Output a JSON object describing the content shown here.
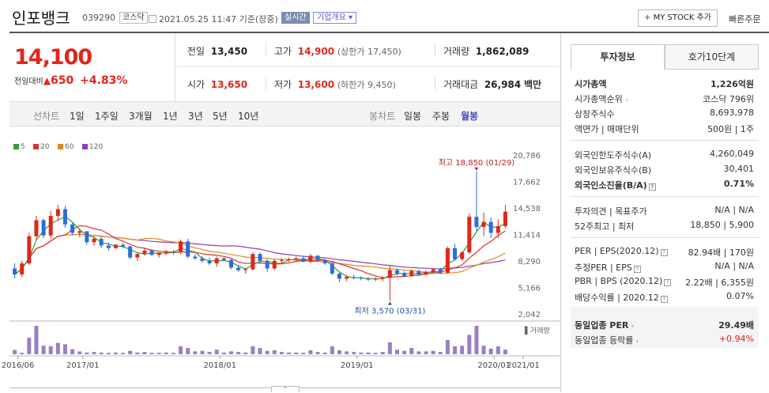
{
  "header": {
    "name": "인포뱅크",
    "code": "039290",
    "market": "코스닥",
    "date": "2021.05.25 11:47 기준(장중)",
    "live": "실시간",
    "company_info": "기업개요 ▾",
    "my_stock": "MY STOCK 추가",
    "my_stock_plus": "+",
    "quick_order": "빠른주문"
  },
  "price": {
    "current": "14,100",
    "change_label": "전일대비",
    "change_arrow": "▲",
    "change": "650",
    "change_pct": "+4.83%"
  },
  "quote": {
    "prev_label": "전일",
    "prev": "13,450",
    "high_label": "고가",
    "high": "14,900",
    "upper_limit": "(상한가 17,450)",
    "volume_label": "거래량",
    "volume": "1,862,089",
    "open_label": "시가",
    "open": "13,650",
    "low_label": "저가",
    "low": "13,600",
    "lower_limit": "(하한가 9,450)",
    "amount_label": "거래대금",
    "amount": "26,984",
    "amount_unit": "백만"
  },
  "period_bar": {
    "line_chart": "선차트",
    "line_periods": [
      "1일",
      "1주일",
      "3개월",
      "1년",
      "3년",
      "5년",
      "10년"
    ],
    "candle_chart": "봉차트",
    "candle_periods": [
      "일봉",
      "주봉",
      "월봉"
    ],
    "selected_candle": "월봉"
  },
  "legend": [
    {
      "label": "5",
      "color": "#3a9a3a"
    },
    {
      "label": "20",
      "color": "#e03030"
    },
    {
      "label": "60",
      "color": "#e08a20"
    },
    {
      "label": "120",
      "color": "#9040b0"
    }
  ],
  "chart_data": {
    "type": "candlestick",
    "interval": "monthly",
    "y_ticks": [
      "20,786",
      "17,662",
      "14,538",
      "11,414",
      "8,290",
      "5,166",
      "2,042"
    ],
    "x_ticks": [
      "2016/06",
      "2017/01",
      "2018/01",
      "2019/01",
      "2020/01",
      "2021/01"
    ],
    "annotation_high": "최고 18,850 (01/29)",
    "annotation_low": "최저 3,570 (03/31)",
    "volume_label": "거래량",
    "colors": {
      "up": "#e0261c",
      "down": "#2b6fd6",
      "volume": "#9a7fc4",
      "ma5": "#3a9a3a",
      "ma20": "#e03030",
      "ma60": "#e08a20",
      "ma120": "#9040b0"
    },
    "candles": [
      [
        7400,
        8000,
        6200,
        6700
      ],
      [
        6700,
        8300,
        6400,
        8000
      ],
      [
        8000,
        11600,
        7800,
        11200
      ],
      [
        11200,
        13600,
        10800,
        13100
      ],
      [
        13100,
        13300,
        11000,
        11300
      ],
      [
        11300,
        14200,
        10900,
        13600
      ],
      [
        13600,
        14900,
        13000,
        14400
      ],
      [
        14400,
        14800,
        12200,
        12600
      ],
      [
        12600,
        12900,
        11300,
        11600
      ],
      [
        11600,
        12100,
        11100,
        11800
      ],
      [
        11800,
        11800,
        10200,
        10500
      ],
      [
        10500,
        11200,
        10100,
        10900
      ],
      [
        10900,
        11200,
        9800,
        10100
      ],
      [
        10100,
        10500,
        9500,
        9800
      ],
      [
        9800,
        10300,
        9700,
        10200
      ],
      [
        10200,
        10400,
        9800,
        10000
      ],
      [
        10000,
        10100,
        8500,
        8700
      ],
      [
        8700,
        9200,
        8300,
        9100
      ],
      [
        9100,
        9800,
        8900,
        9500
      ],
      [
        9500,
        9700,
        8900,
        9000
      ],
      [
        9000,
        9300,
        8700,
        9200
      ],
      [
        9200,
        9600,
        9000,
        9400
      ],
      [
        9400,
        9600,
        9000,
        9300
      ],
      [
        9300,
        10800,
        9100,
        10600
      ],
      [
        10600,
        10900,
        8600,
        8800
      ],
      [
        8800,
        9100,
        8400,
        8600
      ],
      [
        8600,
        8900,
        8100,
        8300
      ],
      [
        8300,
        8700,
        7800,
        8000
      ],
      [
        8000,
        8800,
        7600,
        8600
      ],
      [
        8600,
        8700,
        8300,
        8400
      ],
      [
        8400,
        8600,
        7300,
        7500
      ],
      [
        7500,
        7800,
        7000,
        7200
      ],
      [
        7200,
        7500,
        6800,
        7300
      ],
      [
        7300,
        9300,
        7200,
        9100
      ],
      [
        9100,
        9300,
        8100,
        8300
      ],
      [
        8300,
        8500,
        7000,
        7400
      ],
      [
        7400,
        8500,
        7200,
        8300
      ],
      [
        8300,
        8600,
        8000,
        8400
      ],
      [
        8400,
        8700,
        8200,
        8500
      ],
      [
        8500,
        8800,
        8200,
        8600
      ],
      [
        8600,
        8800,
        8100,
        8200
      ],
      [
        8200,
        9100,
        8000,
        8900
      ],
      [
        8900,
        9000,
        8200,
        8400
      ],
      [
        8400,
        8500,
        7800,
        8000
      ],
      [
        8000,
        8200,
        6600,
        6800
      ],
      [
        6800,
        7000,
        5800,
        6200
      ],
      [
        6200,
        6600,
        5900,
        6400
      ],
      [
        6400,
        6700,
        6100,
        6300
      ],
      [
        6300,
        6500,
        6000,
        6200
      ],
      [
        6200,
        6400,
        5900,
        6100
      ],
      [
        6100,
        6400,
        5900,
        6200
      ],
      [
        6200,
        6500,
        5900,
        6300
      ],
      [
        6300,
        7800,
        3570,
        7200
      ],
      [
        7200,
        7400,
        6600,
        6800
      ],
      [
        6800,
        7100,
        6400,
        6500
      ],
      [
        6500,
        7300,
        6400,
        7100
      ],
      [
        7100,
        7300,
        6500,
        6700
      ],
      [
        6700,
        7200,
        6600,
        7000
      ],
      [
        7000,
        7400,
        6800,
        7300
      ],
      [
        7300,
        7500,
        6700,
        6900
      ],
      [
        6900,
        10000,
        6800,
        9800
      ],
      [
        9800,
        10300,
        8300,
        8500
      ],
      [
        8500,
        9400,
        8300,
        9300
      ],
      [
        9300,
        13900,
        9100,
        13500
      ],
      [
        13500,
        18850,
        11800,
        12300
      ],
      [
        12300,
        14000,
        11200,
        12900
      ],
      [
        12900,
        13400,
        11000,
        11600
      ],
      [
        11600,
        13200,
        11000,
        12400
      ],
      [
        12400,
        14900,
        12200,
        14100
      ]
    ],
    "volume": [
      15,
      5,
      58,
      100,
      30,
      28,
      40,
      35,
      18,
      10,
      6,
      8,
      6,
      5,
      6,
      5,
      12,
      6,
      8,
      5,
      5,
      6,
      5,
      28,
      22,
      10,
      12,
      8,
      16,
      6,
      10,
      8,
      6,
      28,
      22,
      12,
      14,
      8,
      6,
      6,
      5,
      14,
      8,
      6,
      28,
      14,
      10,
      8,
      6,
      6,
      5,
      8,
      42,
      16,
      12,
      22,
      10,
      10,
      12,
      8,
      50,
      28,
      30,
      68,
      100,
      30,
      20,
      28,
      16
    ]
  },
  "right_panel": {
    "tab_info": "투자정보",
    "tab_hoga": "호가10단계",
    "market_cap_label": "시가총액",
    "market_cap": "1,226억원",
    "rank_label": "시가총액순위",
    "rank_arrow": "›",
    "rank": "코스닥 796위",
    "shares_label": "상장주식수",
    "shares": "8,693,978",
    "face_label": "액면가 | 매매단위",
    "face": "500원 | 1주",
    "foreign_limit_label": "외국인한도주식수(A)",
    "foreign_limit": "4,260,049",
    "foreign_hold_label": "외국인보유주식수(B)",
    "foreign_hold": "30,401",
    "foreign_ratio_label": "외국인소진율(B/A)",
    "foreign_ratio": "0.71%",
    "opinion_label": "투자의견 | 목표주가",
    "opinion": "N/A | N/A",
    "w52_label": "52주최고 | 최저",
    "w52": "18,850 | 5,900",
    "per_label": "PER | EPS(2020.12)",
    "per": "82.94배 | 170원",
    "est_per_label": "추정PER | EPS",
    "est_per": "N/A | N/A",
    "pbr_label": "PBR | BPS (2020.12)",
    "pbr": "2.22배 | 6,355원",
    "div_label": "배당수익률 | 2020.12",
    "div": "0.07%",
    "ind_per_label": "동일업종 PER",
    "ind_per": "29.49배",
    "ind_chg_label": "동일업종 등락률",
    "ind_chg": "+0.94%"
  }
}
